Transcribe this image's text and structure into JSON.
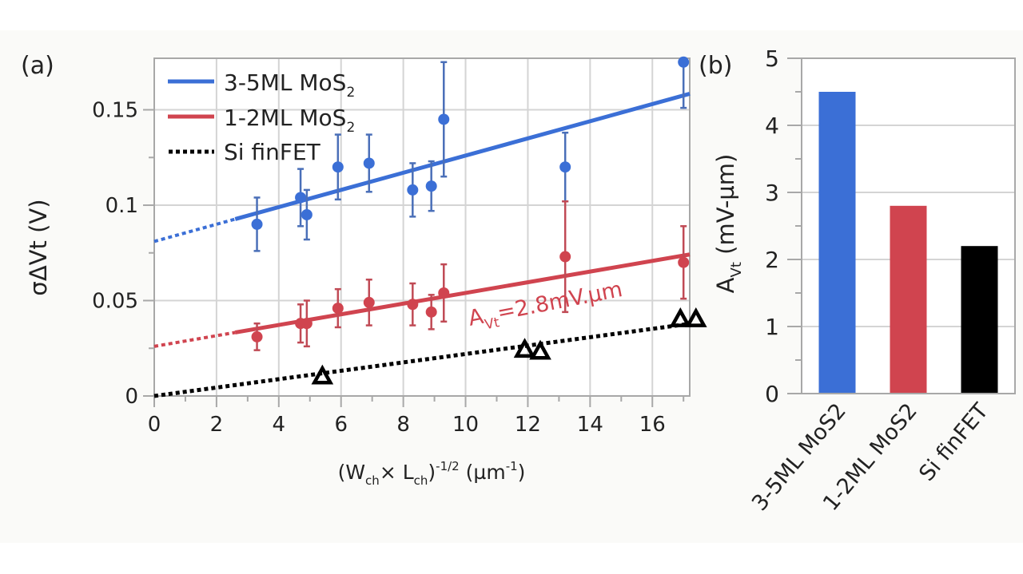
{
  "chart_data": [
    {
      "panel_label": "(a)",
      "type": "scatter",
      "xlabel": "(W_ch × L_ch)^-1/2 (µm^-1)",
      "xlabel_parts": {
        "base1": "(W",
        "sub1": "ch",
        "mid": "× L",
        "sub2": "ch",
        "close": ")",
        "sup": "-1/2",
        "unit_open": " (µm",
        "unit_sup": "-1",
        "unit_close": ")"
      },
      "ylabel": "σΔVt (V)",
      "xlim": [
        0,
        17.2
      ],
      "ylim": [
        0,
        0.177
      ],
      "xticks": [
        0,
        2,
        4,
        6,
        8,
        10,
        12,
        14,
        16
      ],
      "xtick_labels": [
        "0",
        "2",
        "4",
        "6",
        "8",
        "10",
        "12",
        "14",
        "16"
      ],
      "yticks": [
        0,
        0.05,
        0.1,
        0.15
      ],
      "ytick_labels": [
        "0",
        "0.05",
        "0.1",
        "0.15"
      ],
      "grid": true,
      "legend": {
        "placement": "top-left",
        "entries": [
          {
            "label": "3-5ML MoS",
            "sub": "2",
            "style": "solid",
            "color": "#3b6fd6"
          },
          {
            "label": "1-2ML MoS",
            "sub": "2",
            "style": "solid",
            "color": "#d0444f"
          },
          {
            "label": "Si finFET",
            "sub": "",
            "style": "dotted",
            "color": "#000000"
          }
        ]
      },
      "annotation": {
        "text": "A",
        "sub": "Vt",
        "rest": "=2.8mV.µm",
        "color": "#d0444f"
      },
      "series": [
        {
          "name": "3-5ML MoS2",
          "color": "#3b6fd6",
          "marker": "circle",
          "x": [
            3.3,
            4.7,
            4.9,
            5.9,
            6.9,
            8.3,
            8.9,
            9.3,
            13.2,
            17.0
          ],
          "y": [
            0.09,
            0.104,
            0.095,
            0.12,
            0.122,
            0.108,
            0.11,
            0.145,
            0.12,
            0.175
          ],
          "err": [
            0.014,
            0.015,
            0.013,
            0.017,
            0.015,
            0.014,
            0.013,
            0.03,
            0.018,
            0.024
          ],
          "fit": {
            "intercept": 0.081,
            "slope": 0.0045,
            "solid_from": 2.6,
            "to": 17.2
          }
        },
        {
          "name": "1-2ML MoS2",
          "color": "#d0444f",
          "marker": "circle",
          "x": [
            3.3,
            4.7,
            4.9,
            5.9,
            6.9,
            8.3,
            8.9,
            9.3,
            13.2,
            17.0
          ],
          "y": [
            0.031,
            0.038,
            0.038,
            0.046,
            0.049,
            0.048,
            0.044,
            0.054,
            0.073,
            0.07
          ],
          "err": [
            0.007,
            0.01,
            0.012,
            0.01,
            0.012,
            0.011,
            0.009,
            0.015,
            0.029,
            0.019
          ],
          "fit": {
            "intercept": 0.026,
            "slope": 0.0028,
            "solid_from": 2.6,
            "to": 17.2
          }
        },
        {
          "name": "Si finFET",
          "color": "#000000",
          "marker": "triangle-open",
          "x": [
            5.4,
            11.9,
            12.4,
            16.9,
            17.4
          ],
          "y": [
            0.01,
            0.024,
            0.023,
            0.04,
            0.04
          ],
          "fit": {
            "intercept": 0.0,
            "slope": 0.0022,
            "solid_from": null,
            "to": 17.2
          }
        }
      ]
    },
    {
      "panel_label": "(b)",
      "type": "bar",
      "categories": [
        "3-5ML MoS2",
        "1-2ML MoS2",
        "Si finFET"
      ],
      "values": [
        4.5,
        2.8,
        2.2
      ],
      "colors": [
        "#3b6fd6",
        "#d0444f",
        "#000000"
      ],
      "ylabel": "A_Vt (mV-µm)",
      "ylabel_parts": {
        "base": "A",
        "sub": "Vt",
        "rest": " (mV-µm)"
      },
      "ylim": [
        0,
        5
      ],
      "yticks": [
        0,
        1,
        2,
        3,
        4,
        5
      ],
      "ytick_labels": [
        "0",
        "1",
        "2",
        "3",
        "4",
        "5"
      ],
      "grid": true,
      "xlabel": ""
    }
  ]
}
